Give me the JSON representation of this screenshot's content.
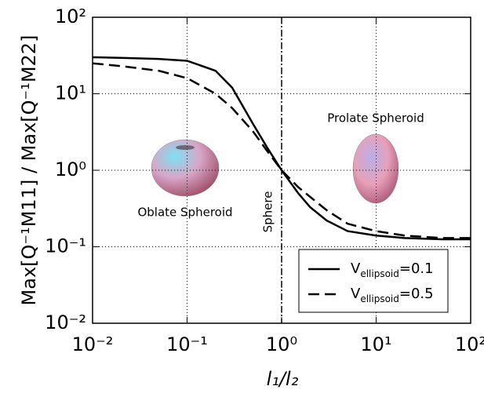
{
  "chart_data": {
    "type": "line",
    "xlabel": "l₁/l₂",
    "ylabel": "Max[Q⁻¹M11] / Max[Q⁻¹M22]",
    "log_x": true,
    "log_y": true,
    "grid": true,
    "legend": "lower right",
    "xlim": [
      0.01,
      100
    ],
    "ylim": [
      0.01,
      100
    ],
    "xticks": [
      {
        "value": 0.01,
        "label": "10⁻²"
      },
      {
        "value": 0.1,
        "label": "10⁻¹"
      },
      {
        "value": 1,
        "label": "10⁰"
      },
      {
        "value": 10,
        "label": "10¹"
      },
      {
        "value": 100,
        "label": "10²"
      }
    ],
    "yticks": [
      {
        "value": 0.01,
        "label": "10⁻²"
      },
      {
        "value": 0.1,
        "label": "10⁻¹"
      },
      {
        "value": 1,
        "label": "10⁰"
      },
      {
        "value": 10,
        "label": "10¹"
      },
      {
        "value": 100,
        "label": "10²"
      }
    ],
    "x": [
      0.01,
      0.02,
      0.05,
      0.1,
      0.2,
      0.3,
      0.5,
      0.7,
      1,
      1.5,
      2,
      3,
      5,
      10,
      20,
      50,
      100
    ],
    "series": [
      {
        "name": "Vellipsoid=0.1",
        "color": "#000000",
        "dash": "solid",
        "values": [
          30,
          29.5,
          28.5,
          27,
          20,
          12,
          4,
          2,
          1,
          0.5,
          0.33,
          0.22,
          0.16,
          0.14,
          0.13,
          0.125,
          0.125
        ]
      },
      {
        "name": "Vellipsoid=0.5",
        "color": "#000000",
        "dash": "dashed",
        "values": [
          25,
          23,
          20,
          16,
          10,
          6.5,
          3.2,
          1.8,
          1,
          0.6,
          0.45,
          0.3,
          0.2,
          0.16,
          0.14,
          0.13,
          0.13
        ]
      }
    ],
    "vline": 1,
    "annotations": [
      "Sphere",
      "Oblate Spheroid",
      "Prolate Spheroid"
    ]
  }
}
